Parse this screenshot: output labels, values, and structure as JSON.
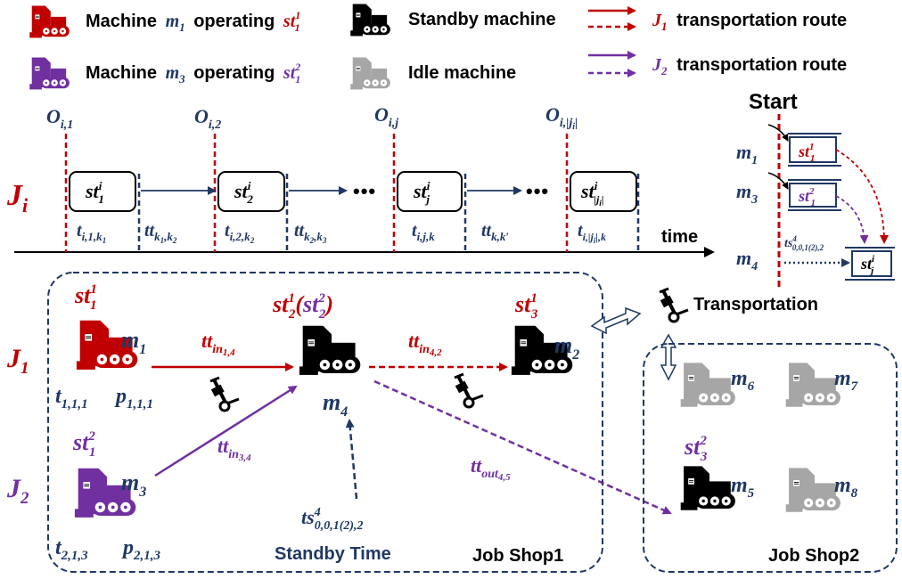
{
  "colors": {
    "j1": "#c00000",
    "j2": "#7030a0",
    "navy": "#1f3864",
    "black": "#000000",
    "gray": "#a6a6a6"
  },
  "legend": {
    "m1_word": "Machine",
    "m1_machine": "m",
    "m1_sub": "1",
    "m1_verb": "operating",
    "m1_op": "st",
    "m1_op_sup": "1",
    "m1_op_sub": "1",
    "m3_word": "Machine",
    "m3_machine": "m",
    "m3_sub": "3",
    "m3_verb": "operating",
    "m3_op": "st",
    "m3_op_sup": "2",
    "m3_op_sub": "1",
    "standby": "Standby machine",
    "idle": "Idle machine",
    "route1_job": "J",
    "route1_sub": "1",
    "route1_text": "transportation route",
    "route2_job": "J",
    "route2_sub": "2",
    "route2_text": "transportation route"
  },
  "timeline": {
    "job": "J",
    "job_sub": "i",
    "ops": [
      {
        "base": "O",
        "sub": "i,1"
      },
      {
        "base": "O",
        "sub": "i,2"
      },
      {
        "base": "O",
        "sub": "i,j"
      },
      {
        "base": "O",
        "sub": "i,|j",
        "sub2": "i",
        "sub3": "|"
      }
    ],
    "stages": [
      {
        "base": "st",
        "sup": "i",
        "sub": "1"
      },
      {
        "base": "st",
        "sup": "i",
        "sub": "2"
      },
      {
        "base": "st",
        "sup": "i",
        "sub": "j"
      },
      {
        "base": "st",
        "sup": "i",
        "sub": "|j",
        "sub2": "i",
        "sub3": "|"
      }
    ],
    "durations": [
      {
        "base": "t",
        "sub": "i,1,k",
        "sub2": "1"
      },
      {
        "base": "tt",
        "sub": "k",
        "sub2": "1",
        "sub3": ",k",
        "sub4": "2"
      },
      {
        "base": "t",
        "sub": "i,2,k",
        "sub2": "2"
      },
      {
        "base": "tt",
        "sub": "k",
        "sub2": "2",
        "sub3": ",k",
        "sub4": "3"
      },
      {
        "base": "t",
        "sub": "i,j,k"
      },
      {
        "base": "tt",
        "sub": "k,k′"
      },
      {
        "base": "t",
        "sub": "i,|j",
        "sub2": "i",
        "sub3": "|,k"
      }
    ],
    "ellipsis": "•••",
    "axis_label": "time"
  },
  "start_panel": {
    "title": "Start",
    "rows": [
      {
        "m": "m",
        "sub": "1",
        "op": "st",
        "sup": "1",
        "opsub": "1"
      },
      {
        "m": "m",
        "sub": "3",
        "op": "st",
        "sup": "2",
        "opsub": "1"
      },
      {
        "m": "m",
        "sub": "4",
        "op": "st",
        "sup": "i",
        "opsub": "j"
      }
    ],
    "standby": {
      "base": "ts",
      "sup": "4",
      "sub": "0,0,1(2),2"
    }
  },
  "shop1": {
    "name": "Job Shop1",
    "j1": {
      "base": "J",
      "sub": "1"
    },
    "j2": {
      "base": "J",
      "sub": "2"
    },
    "m1": {
      "label": "m",
      "sub": "1",
      "op": "st",
      "sup": "1",
      "opsub": "1"
    },
    "m3": {
      "label": "m",
      "sub": "3",
      "op": "st",
      "sup": "2",
      "opsub": "1"
    },
    "m4": {
      "label": "m",
      "sub": "4",
      "op1": "st",
      "sup1": "1",
      "sub1": "2",
      "op2": "st",
      "sup2": "2",
      "sub2": "2"
    },
    "m2": {
      "label": "m",
      "sub": "2",
      "op": "st",
      "sup": "1",
      "opsub": "3"
    },
    "t111": {
      "base": "t",
      "sub": "1,1,1"
    },
    "p111": {
      "base": "p",
      "sub": "1,1,1"
    },
    "t213": {
      "base": "t",
      "sub": "2,1,3"
    },
    "p213": {
      "base": "p",
      "sub": "2,1,3"
    },
    "tt14": {
      "base": "tt",
      "sub": "in",
      "sub2": "1,4"
    },
    "tt42": {
      "base": "tt",
      "sub": "in",
      "sub2": "4,2"
    },
    "tt34": {
      "base": "tt",
      "sub": "in",
      "sub2": "3,4"
    },
    "tt45": {
      "base": "tt",
      "sub": "out",
      "sub2": "4,5"
    },
    "ts": {
      "base": "ts",
      "sup": "4",
      "sub": "0,0,1(2),2"
    },
    "standby_time": "Standby Time"
  },
  "shop2": {
    "name": "Job Shop2",
    "m5": {
      "label": "m",
      "sub": "5",
      "op": "st",
      "sup": "2",
      "opsub": "3"
    },
    "m6": {
      "label": "m",
      "sub": "6"
    },
    "m7": {
      "label": "m",
      "sub": "7"
    },
    "m8": {
      "label": "m",
      "sub": "8"
    }
  },
  "transportation": "Transportation"
}
